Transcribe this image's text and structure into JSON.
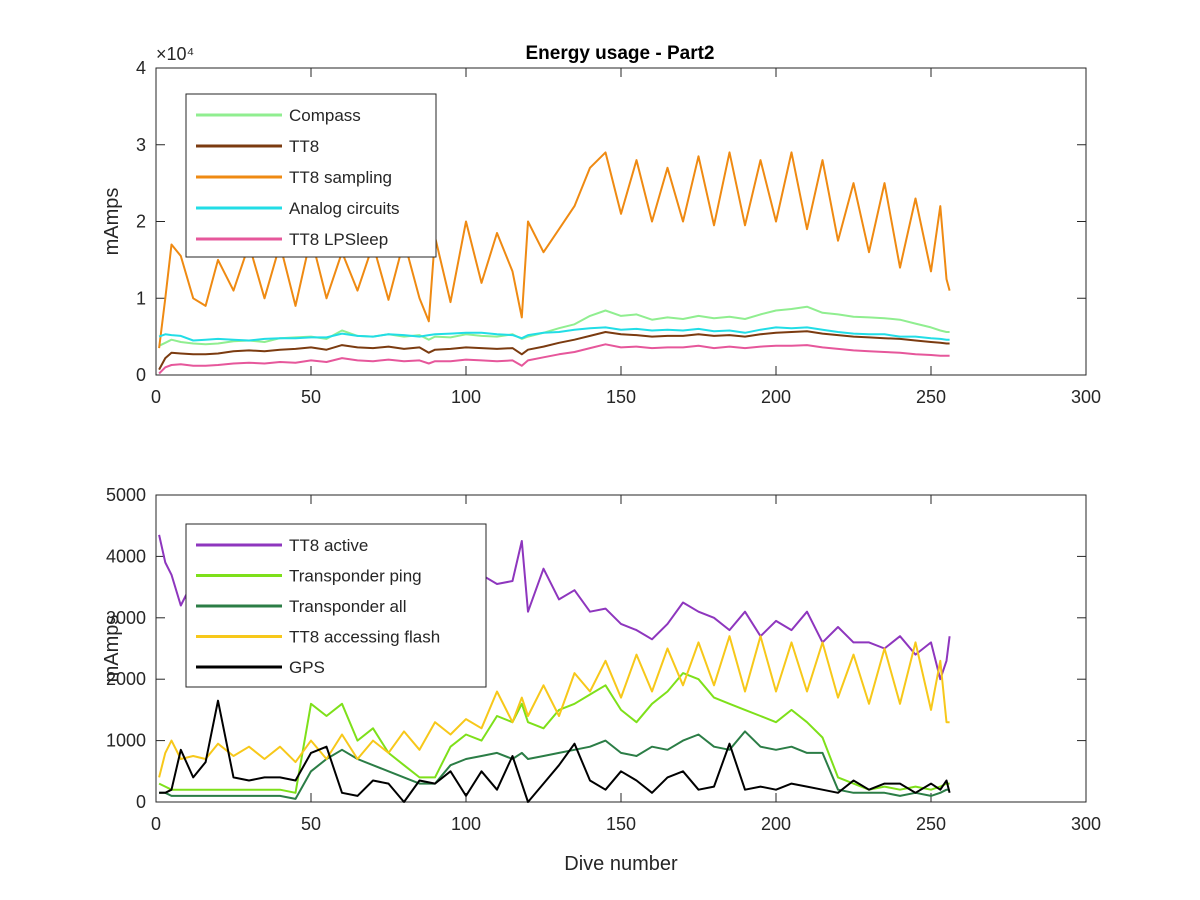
{
  "figure": {
    "title": "Energy usage - Part2"
  },
  "chart_data": [
    {
      "type": "line",
      "title": "Energy usage - Part2",
      "xlabel": "",
      "ylabel": "mAmps",
      "xlim": [
        0,
        300
      ],
      "ylim": [
        0,
        40000
      ],
      "xticks": [
        0,
        50,
        100,
        150,
        200,
        250,
        300
      ],
      "yticks": [
        0,
        1,
        2,
        3,
        4
      ],
      "y_exponent_label": "×10⁴",
      "y_scale_factor": 10000,
      "grid": false,
      "legend": "top-left",
      "x": [
        1,
        3,
        5,
        8,
        12,
        16,
        20,
        25,
        30,
        35,
        40,
        45,
        50,
        55,
        60,
        65,
        70,
        75,
        80,
        85,
        88,
        90,
        95,
        100,
        105,
        110,
        115,
        118,
        120,
        125,
        130,
        135,
        140,
        145,
        150,
        155,
        160,
        165,
        170,
        175,
        180,
        185,
        190,
        195,
        200,
        205,
        210,
        215,
        220,
        225,
        230,
        235,
        240,
        245,
        250,
        253,
        255,
        256
      ],
      "series": [
        {
          "name": "Compass",
          "color": "#90ee90",
          "values": [
            3800,
            4200,
            4600,
            4300,
            4100,
            4000,
            4100,
            4400,
            4500,
            4300,
            4800,
            4900,
            5000,
            4700,
            5800,
            5100,
            5000,
            5300,
            5000,
            5200,
            4600,
            5000,
            4900,
            5300,
            5100,
            5000,
            5300,
            4700,
            5000,
            5500,
            6100,
            6600,
            7700,
            8400,
            7700,
            7900,
            7200,
            7500,
            7300,
            7700,
            7400,
            7600,
            7300,
            7900,
            8400,
            8600,
            8900,
            8100,
            7900,
            7600,
            7500,
            7400,
            7200,
            6700,
            6200,
            5800,
            5600,
            5600
          ]
        },
        {
          "name": "TT8",
          "color": "#7b3b10",
          "values": [
            700,
            2200,
            2900,
            2800,
            2700,
            2700,
            2800,
            3100,
            3200,
            3100,
            3300,
            3400,
            3600,
            3300,
            3900,
            3600,
            3500,
            3700,
            3400,
            3600,
            2900,
            3300,
            3400,
            3600,
            3500,
            3400,
            3500,
            2700,
            3300,
            3700,
            4200,
            4600,
            5100,
            5600,
            5300,
            5200,
            5000,
            5100,
            5100,
            5300,
            5100,
            5200,
            5000,
            5300,
            5500,
            5600,
            5700,
            5400,
            5200,
            5000,
            4900,
            4800,
            4700,
            4500,
            4300,
            4200,
            4100,
            4100
          ]
        },
        {
          "name": "TT8 sampling",
          "color": "#ef8a12",
          "values": [
            3500,
            10000,
            17000,
            15500,
            10000,
            9000,
            15000,
            11000,
            17000,
            10000,
            17000,
            9000,
            18000,
            10000,
            16000,
            11000,
            17000,
            9800,
            17500,
            10000,
            7000,
            18000,
            9500,
            20000,
            12000,
            18500,
            13500,
            7500,
            20000,
            16000,
            19000,
            22000,
            27000,
            29000,
            21000,
            28000,
            20000,
            27000,
            20000,
            28500,
            19500,
            29000,
            19500,
            28000,
            20000,
            29000,
            19000,
            28000,
            17500,
            25000,
            16000,
            25000,
            14000,
            23000,
            13500,
            22000,
            12500,
            11000
          ]
        },
        {
          "name": "Analog circuits",
          "color": "#22dde6",
          "values": [
            5000,
            5300,
            5200,
            5100,
            4500,
            4600,
            4700,
            4600,
            4500,
            4700,
            4800,
            4800,
            4900,
            4900,
            5400,
            5100,
            5000,
            5300,
            5200,
            5000,
            5200,
            5300,
            5400,
            5500,
            5500,
            5300,
            5200,
            4800,
            5200,
            5500,
            5600,
            5900,
            6100,
            6200,
            5900,
            6000,
            5800,
            5900,
            5800,
            6000,
            5700,
            5800,
            5500,
            5900,
            6200,
            6100,
            6200,
            5900,
            5600,
            5400,
            5300,
            5300,
            5000,
            5000,
            4800,
            4700,
            4600,
            4600
          ]
        },
        {
          "name": "TT8 LPSleep",
          "color": "#e6579b",
          "values": [
            200,
            1000,
            1300,
            1400,
            1200,
            1200,
            1300,
            1500,
            1600,
            1500,
            1700,
            1600,
            1900,
            1700,
            2200,
            1900,
            1800,
            2000,
            1800,
            1900,
            1500,
            1800,
            1800,
            2000,
            1900,
            1800,
            1900,
            1200,
            1900,
            2300,
            2700,
            3000,
            3500,
            4000,
            3600,
            3700,
            3500,
            3600,
            3600,
            3800,
            3500,
            3700,
            3500,
            3700,
            3800,
            3800,
            3900,
            3600,
            3400,
            3200,
            3100,
            3000,
            2900,
            2700,
            2600,
            2500,
            2500,
            2500
          ]
        }
      ]
    },
    {
      "type": "line",
      "title": "",
      "xlabel": "Dive number",
      "ylabel": "mAmps",
      "xlim": [
        0,
        300
      ],
      "ylim": [
        0,
        5000
      ],
      "xticks": [
        0,
        50,
        100,
        150,
        200,
        250,
        300
      ],
      "yticks": [
        0,
        1000,
        2000,
        3000,
        4000,
        5000
      ],
      "grid": false,
      "legend": "top-left",
      "x": [
        1,
        3,
        5,
        8,
        12,
        16,
        20,
        25,
        30,
        35,
        40,
        45,
        50,
        55,
        60,
        65,
        70,
        75,
        80,
        85,
        90,
        95,
        100,
        105,
        110,
        115,
        118,
        120,
        125,
        130,
        135,
        140,
        145,
        150,
        155,
        160,
        165,
        170,
        175,
        180,
        185,
        190,
        195,
        200,
        205,
        210,
        215,
        220,
        225,
        230,
        235,
        240,
        245,
        250,
        253,
        255,
        256
      ],
      "series": [
        {
          "name": "TT8 active",
          "color": "#8e36be",
          "values": [
            4350,
            3900,
            3700,
            3200,
            3600,
            3300,
            3500,
            3700,
            3400,
            3600,
            3300,
            3500,
            3400,
            3600,
            3350,
            3500,
            3450,
            3550,
            3400,
            3500,
            3400,
            3600,
            3500,
            3700,
            3550,
            3600,
            4250,
            3100,
            3800,
            3300,
            3450,
            3100,
            3150,
            2900,
            2800,
            2650,
            2900,
            3250,
            3100,
            3000,
            2800,
            3100,
            2700,
            2950,
            2800,
            3100,
            2600,
            2850,
            2600,
            2600,
            2500,
            2700,
            2400,
            2600,
            2000,
            2300,
            2700
          ]
        },
        {
          "name": "Transponder ping",
          "color": "#7ee01a",
          "values": [
            300,
            250,
            200,
            200,
            200,
            200,
            200,
            200,
            200,
            200,
            200,
            150,
            1600,
            1400,
            1600,
            1000,
            1200,
            800,
            600,
            400,
            400,
            900,
            1100,
            1000,
            1400,
            1300,
            1600,
            1300,
            1200,
            1500,
            1600,
            1750,
            1900,
            1500,
            1300,
            1600,
            1800,
            2100,
            2000,
            1700,
            1600,
            1500,
            1400,
            1300,
            1500,
            1300,
            1050,
            400,
            300,
            200,
            250,
            200,
            250,
            200,
            250,
            300,
            300
          ]
        },
        {
          "name": "Transponder all",
          "color": "#2b7d46",
          "values": [
            150,
            150,
            100,
            100,
            100,
            100,
            100,
            100,
            100,
            100,
            100,
            50,
            500,
            700,
            850,
            700,
            600,
            500,
            400,
            300,
            300,
            600,
            700,
            750,
            800,
            700,
            800,
            700,
            750,
            800,
            850,
            900,
            1000,
            800,
            750,
            900,
            850,
            1000,
            1100,
            900,
            850,
            1150,
            900,
            850,
            900,
            800,
            800,
            200,
            150,
            150,
            150,
            100,
            150,
            100,
            150,
            200,
            200
          ]
        },
        {
          "name": "TT8 accessing flash",
          "color": "#f7c81a",
          "values": [
            400,
            800,
            1000,
            700,
            750,
            700,
            950,
            750,
            900,
            700,
            900,
            650,
            1000,
            700,
            1100,
            700,
            1000,
            800,
            1150,
            850,
            1300,
            1100,
            1350,
            1200,
            1800,
            1300,
            1700,
            1400,
            1900,
            1400,
            2100,
            1800,
            2300,
            1700,
            2400,
            1800,
            2500,
            1900,
            2600,
            1900,
            2700,
            1800,
            2700,
            1800,
            2600,
            1800,
            2600,
            1700,
            2400,
            1600,
            2500,
            1600,
            2600,
            1500,
            2300,
            1300,
            1300
          ]
        },
        {
          "name": "GPS",
          "color": "#000000",
          "values": [
            150,
            150,
            200,
            850,
            400,
            650,
            1650,
            400,
            350,
            400,
            400,
            350,
            800,
            900,
            150,
            100,
            350,
            300,
            0,
            350,
            300,
            500,
            100,
            500,
            200,
            750,
            300,
            0,
            300,
            600,
            950,
            350,
            200,
            500,
            350,
            150,
            400,
            500,
            200,
            250,
            950,
            200,
            250,
            200,
            300,
            250,
            200,
            150,
            350,
            200,
            300,
            300,
            150,
            300,
            200,
            350,
            150
          ]
        }
      ]
    }
  ]
}
